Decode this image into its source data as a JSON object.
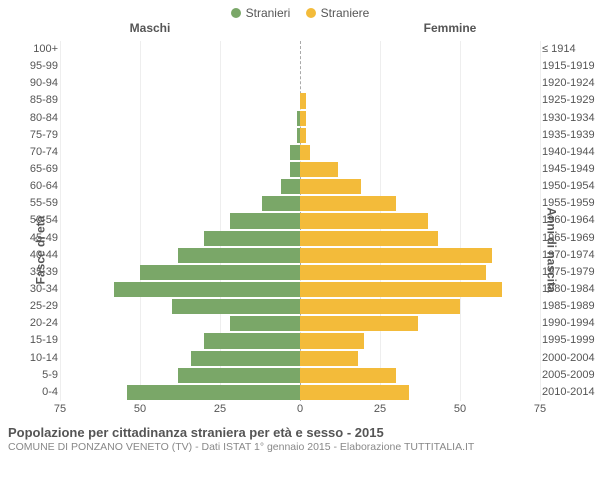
{
  "legend": {
    "male": {
      "label": "Stranieri",
      "color": "#7aa768"
    },
    "female": {
      "label": "Straniere",
      "color": "#f3bb3a"
    }
  },
  "headers": {
    "male": "Maschi",
    "female": "Femmine"
  },
  "axis_titles": {
    "left": "Fasce di età",
    "right": "Anni di nascita"
  },
  "chart": {
    "type": "population-pyramid",
    "x_max": 75,
    "x_ticks": [
      75,
      50,
      25,
      0,
      25,
      50,
      75
    ],
    "bar_color_male": "#7aa768",
    "bar_color_female": "#f3bb3a",
    "grid_color": "#eeeeee",
    "center_line_color": "#aaaaaa",
    "background": "#ffffff",
    "rows": [
      {
        "age": "100+",
        "birth": "≤ 1914",
        "m": 0,
        "f": 0
      },
      {
        "age": "95-99",
        "birth": "1915-1919",
        "m": 0,
        "f": 0
      },
      {
        "age": "90-94",
        "birth": "1920-1924",
        "m": 0,
        "f": 0
      },
      {
        "age": "85-89",
        "birth": "1925-1929",
        "m": 0,
        "f": 2
      },
      {
        "age": "80-84",
        "birth": "1930-1934",
        "m": 1,
        "f": 2
      },
      {
        "age": "75-79",
        "birth": "1935-1939",
        "m": 1,
        "f": 2
      },
      {
        "age": "70-74",
        "birth": "1940-1944",
        "m": 3,
        "f": 3
      },
      {
        "age": "65-69",
        "birth": "1945-1949",
        "m": 3,
        "f": 12
      },
      {
        "age": "60-64",
        "birth": "1950-1954",
        "m": 6,
        "f": 19
      },
      {
        "age": "55-59",
        "birth": "1955-1959",
        "m": 12,
        "f": 30
      },
      {
        "age": "50-54",
        "birth": "1960-1964",
        "m": 22,
        "f": 40
      },
      {
        "age": "45-49",
        "birth": "1965-1969",
        "m": 30,
        "f": 43
      },
      {
        "age": "40-44",
        "birth": "1970-1974",
        "m": 38,
        "f": 60
      },
      {
        "age": "35-39",
        "birth": "1975-1979",
        "m": 50,
        "f": 58
      },
      {
        "age": "30-34",
        "birth": "1980-1984",
        "m": 58,
        "f": 63
      },
      {
        "age": "25-29",
        "birth": "1985-1989",
        "m": 40,
        "f": 50
      },
      {
        "age": "20-24",
        "birth": "1990-1994",
        "m": 22,
        "f": 37
      },
      {
        "age": "15-19",
        "birth": "1995-1999",
        "m": 30,
        "f": 20
      },
      {
        "age": "10-14",
        "birth": "2000-2004",
        "m": 34,
        "f": 18
      },
      {
        "age": "5-9",
        "birth": "2005-2009",
        "m": 38,
        "f": 30
      },
      {
        "age": "0-4",
        "birth": "2010-2014",
        "m": 54,
        "f": 34
      }
    ]
  },
  "footer": {
    "title": "Popolazione per cittadinanza straniera per età e sesso - 2015",
    "subtitle": "COMUNE DI PONZANO VENETO (TV) - Dati ISTAT 1° gennaio 2015 - Elaborazione TUTTITALIA.IT"
  }
}
